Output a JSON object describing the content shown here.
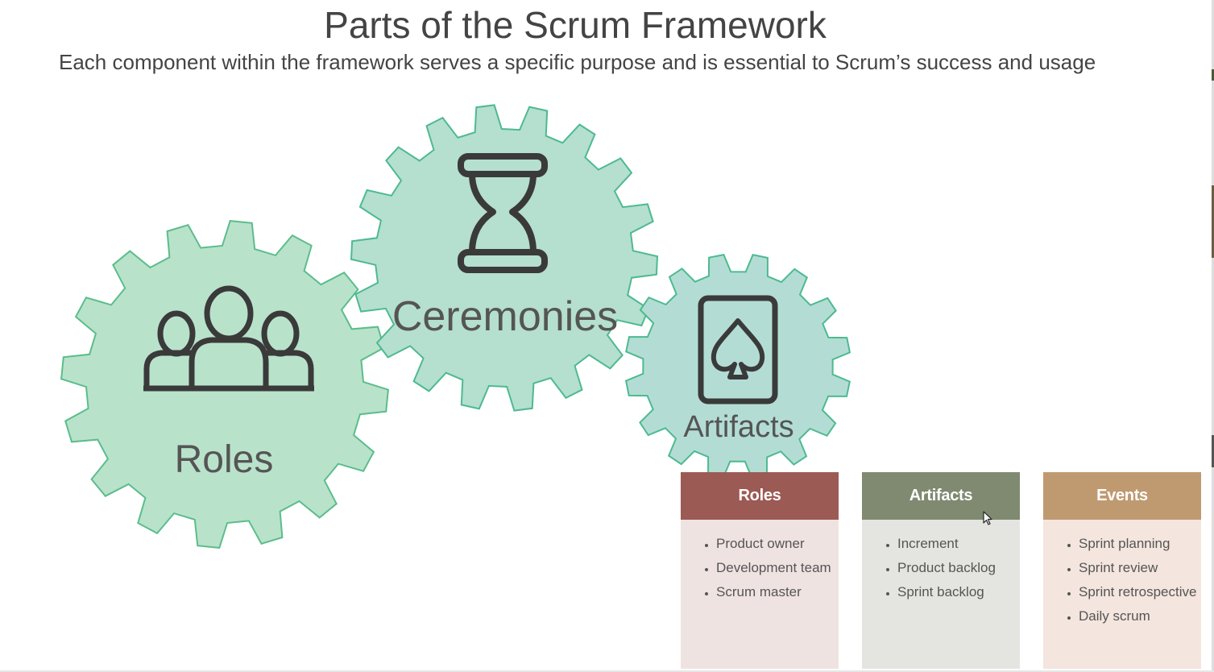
{
  "slide": {
    "title": "Parts of the Scrum Framework",
    "subtitle": "Each component within the framework serves a specific purpose and is essential to Scrum’s success and usage"
  },
  "gears": [
    {
      "label": "Roles",
      "icon": "people-group-icon",
      "fill": "#b9e2cb",
      "stroke": "#5bbd8b"
    },
    {
      "label": "Ceremonies",
      "icon": "hourglass-icon",
      "fill": "#b5dfcf",
      "stroke": "#4dba90"
    },
    {
      "label": "Artifacts",
      "icon": "spade-card-icon",
      "fill": "#b3ddd4",
      "stroke": "#4dba90"
    }
  ],
  "cards": {
    "roles": {
      "title": "Roles",
      "items": [
        "Product owner",
        "Development team",
        "Scrum master"
      ]
    },
    "artifacts": {
      "title": "Artifacts",
      "items": [
        "Increment",
        "Product backlog",
        "Sprint backlog"
      ]
    },
    "events": {
      "title": "Events",
      "items": [
        "Sprint planning",
        "Sprint review",
        "Sprint retrospective",
        "Daily scrum"
      ]
    }
  },
  "colors": {
    "roles_header": "#9c5a54",
    "artifacts_header": "#7f8a70",
    "events_header": "#bf9a71",
    "text": "#444444"
  }
}
